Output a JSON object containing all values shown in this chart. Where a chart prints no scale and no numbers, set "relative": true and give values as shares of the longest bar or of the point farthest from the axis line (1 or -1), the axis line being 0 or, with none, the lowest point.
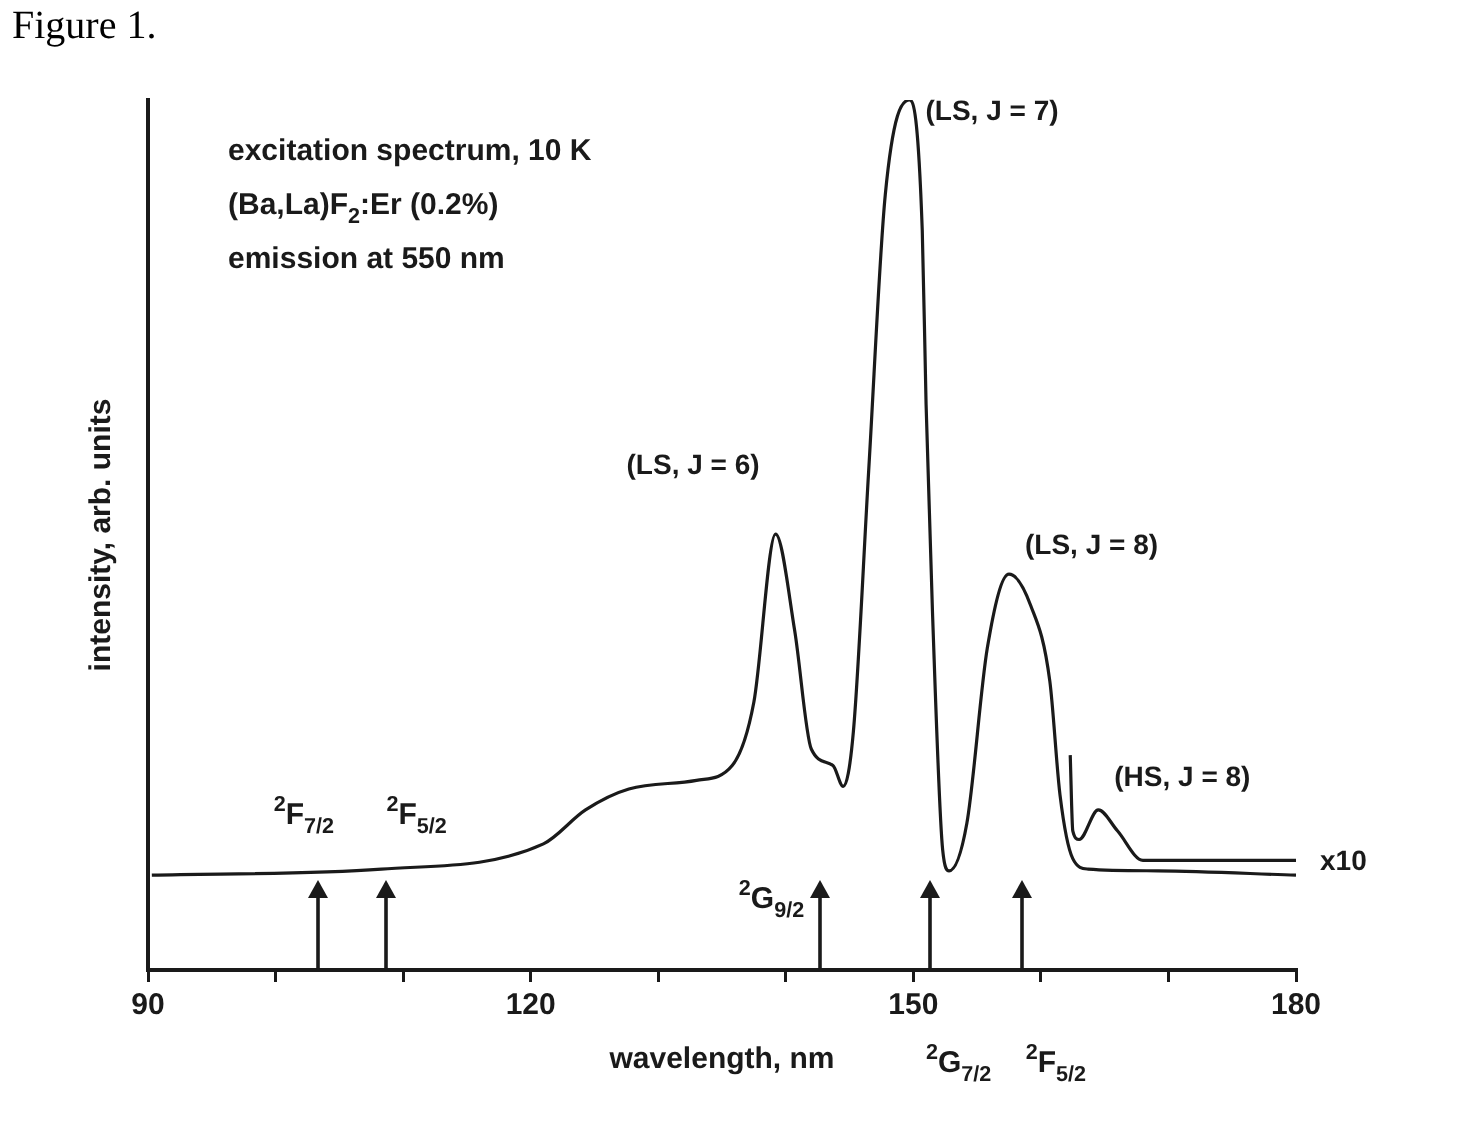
{
  "chart_data": {
    "type": "line",
    "title": "Figure 1.",
    "xlabel": "wavelength, nm",
    "ylabel": "intensity, arb. units",
    "relative": true,
    "xlim": [
      90,
      180
    ],
    "xticks": [
      90,
      {
        "value": 100,
        "label": null
      },
      {
        "value": 110,
        "label": null
      },
      120,
      {
        "value": 130,
        "label": null
      },
      {
        "value": 140,
        "label": null
      },
      150,
      {
        "value": 160,
        "label": null
      },
      {
        "value": 170,
        "label": null
      },
      180
    ],
    "grid": false,
    "legend": false,
    "marker": "none",
    "line_style": "solid",
    "series": [
      {
        "color": "#1a1a1a",
        "x": [
          90.3,
          108.3,
          121.0,
          124.3,
          127.7,
          133.0,
          135.8,
          137.5,
          139.2,
          140.7,
          142.0,
          143.7,
          144.5,
          145.3,
          146.5,
          147.8,
          149.7,
          150.7,
          151.0,
          151.5,
          152.3,
          152.8,
          154.2,
          155.8,
          157.5,
          159.2,
          160.7,
          161.5,
          162.5,
          163.7,
          169.2,
          180
        ],
        "values": [
          0.109,
          0.116,
          0.145,
          0.184,
          0.208,
          0.218,
          0.235,
          0.308,
          0.501,
          0.39,
          0.254,
          0.235,
          0.211,
          0.274,
          0.574,
          0.891,
          1.0,
          0.85,
          0.65,
          0.412,
          0.138,
          0.114,
          0.169,
          0.37,
          0.455,
          0.419,
          0.332,
          0.201,
          0.128,
          0.116,
          0.114,
          0.109
        ]
      },
      {
        "name": "x10",
        "color": "#1a1a1a",
        "x": [
          162.3,
          162.5,
          163.0,
          164.5,
          166.0,
          168.0,
          180
        ],
        "values": [
          0.247,
          0.16,
          0.15,
          0.184,
          0.16,
          0.126,
          0.126
        ]
      }
    ],
    "annotations": [
      "excitation spectrum, 10 K",
      "(Ba,La)F$_{2}$:Er (0.2%)",
      "emission at 550 nm",
      {
        "text": "(LS, J = 6)",
        "x": 139.2,
        "y": 0.501
      },
      {
        "text": "(LS, J = 7)",
        "x": 149.7,
        "y": 1.0
      },
      {
        "text": "(LS, J = 8)",
        "x": 157.5,
        "y": 0.455
      },
      {
        "text": "(HS, J = 8)",
        "x": 164.5,
        "y": 0.184
      }
    ],
    "ref_lines": [
      {
        "axis": "x",
        "value": 103.3,
        "label": "$^{2}$F$_{7/2}$"
      },
      {
        "axis": "x",
        "value": 108.7,
        "label": "$^{2}$F$_{5/2}$"
      },
      {
        "axis": "x",
        "value": 142.7,
        "label": "$^{2}$G$_{9/2}$"
      },
      {
        "axis": "x",
        "value": 151.3,
        "label": "$^{2}$G$_{7/2}$"
      },
      {
        "axis": "x",
        "value": 158.5,
        "label": "$^{2}$F$_{5/2}$"
      }
    ]
  }
}
